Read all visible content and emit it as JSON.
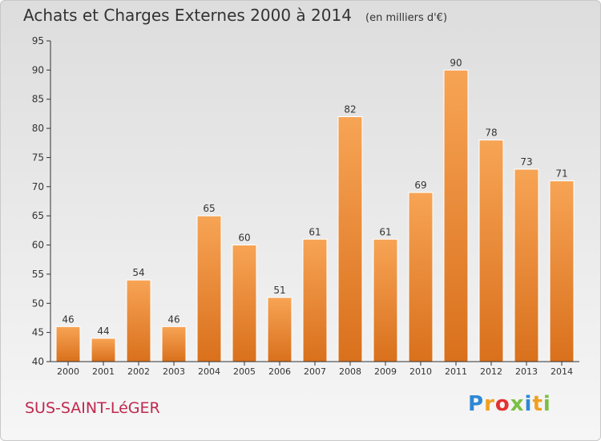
{
  "page": {
    "commune": "SUS-SAINT-LéGER",
    "brand": {
      "letters": [
        "P",
        "r",
        "o",
        "x",
        "i",
        "t",
        "i"
      ],
      "colors": [
        "#2e88d4",
        "#f0a020",
        "#e53030",
        "#7ac043",
        "#2e88d4",
        "#f0a020",
        "#7ac043"
      ]
    }
  },
  "chart_data": {
    "type": "bar",
    "title": "Achats et Charges Externes 2000 à 2014",
    "subtitle": "(en milliers d'€)",
    "categories": [
      "2000",
      "2001",
      "2002",
      "2003",
      "2004",
      "2005",
      "2006",
      "2007",
      "2008",
      "2009",
      "2010",
      "2011",
      "2012",
      "2013",
      "2014"
    ],
    "values": [
      46,
      44,
      54,
      46,
      65,
      60,
      51,
      61,
      82,
      61,
      69,
      90,
      78,
      73,
      71
    ],
    "ylim": [
      40,
      95
    ],
    "yticks": [
      40,
      45,
      50,
      55,
      60,
      65,
      70,
      75,
      80,
      85,
      90,
      95
    ],
    "grid": false,
    "bar_color": "#f0913a",
    "axis_color": "#333333"
  }
}
